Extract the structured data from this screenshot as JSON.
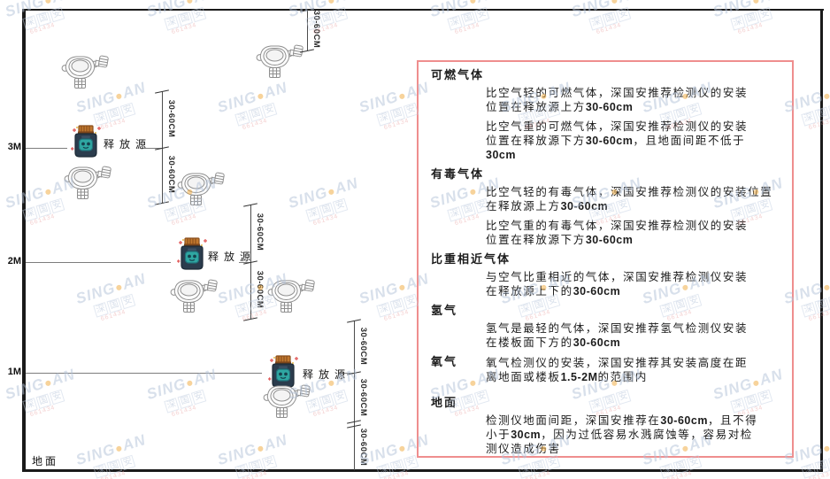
{
  "diagram": {
    "axis_labels": [
      {
        "text": "3M"
      },
      {
        "text": "2M"
      },
      {
        "text": "1M"
      }
    ],
    "ground_label": "地面",
    "source_label": "释放源",
    "dim_label": "30-60CM"
  },
  "panel": {
    "border_color": "#ef8e8e",
    "sections": [
      {
        "heading": "可燃气体",
        "inline": false,
        "gapTop": false,
        "paragraphs": [
          {
            "lines": [
              [
                {
                  "t": "比空气轻的可燃气体，深国安推荐检测仪的安装"
                }
              ],
              [
                {
                  "t": "位置在释放源上方"
                },
                {
                  "t": "30-60cm",
                  "b": true
                }
              ]
            ]
          },
          {
            "lines": [
              [
                {
                  "t": "比空气重的可燃气体，深国安推荐检测仪的安装"
                }
              ],
              [
                {
                  "t": "位置在释放源下方"
                },
                {
                  "t": "30-60cm",
                  "b": true
                },
                {
                  "t": "，且地面间距不低于"
                }
              ],
              [
                {
                  "t": "30cm",
                  "b": true
                }
              ]
            ]
          }
        ]
      },
      {
        "heading": "有毒气体",
        "inline": false,
        "gapTop": false,
        "paragraphs": [
          {
            "lines": [
              [
                {
                  "t": "比空气轻的有毒气体，深国安推荐检测仪的安装位置"
                }
              ],
              [
                {
                  "t": "在释放源上方"
                },
                {
                  "t": "30-60cm",
                  "b": true
                }
              ]
            ]
          },
          {
            "lines": [
              [
                {
                  "t": "比空气重的有毒气体，深国安推荐检测仪的安装"
                }
              ],
              [
                {
                  "t": "位置在释放源下方"
                },
                {
                  "t": "30-60cm",
                  "b": true
                }
              ]
            ]
          }
        ]
      },
      {
        "heading": "比重相近气体",
        "inline": false,
        "gapTop": false,
        "paragraphs": [
          {
            "lines": [
              [
                {
                  "t": "与空气比重相近的气体，深国安推荐检测仪安装"
                }
              ],
              [
                {
                  "t": "在释放源上下的"
                },
                {
                  "t": "30-60cm",
                  "b": true
                }
              ]
            ]
          }
        ]
      },
      {
        "heading": "氢气",
        "inline": false,
        "gapTop": false,
        "paragraphs": [
          {
            "lines": [
              [
                {
                  "t": "氢气是最轻的气体，深国安推荐氢气检测仪安装"
                }
              ],
              [
                {
                  "t": "在楼板面下方的"
                },
                {
                  "t": "30-60cm",
                  "b": true
                }
              ]
            ]
          }
        ]
      },
      {
        "heading": "氧气",
        "inline": true,
        "gapTop": false,
        "paragraphs": [
          {
            "lines": [
              [
                {
                  "t": "氧气检测仪的安装，深国安推荐其安装高度在距"
                }
              ],
              [
                {
                  "t": "离地面或楼板"
                },
                {
                  "t": "1.5-2M",
                  "b": true
                },
                {
                  "t": "的范围内"
                }
              ]
            ]
          }
        ]
      },
      {
        "heading": "地面",
        "inline": false,
        "gapTop": true,
        "paragraphs": [
          {
            "lines": [
              [
                {
                  "t": "检测仪地面间距，深国安推荐在"
                },
                {
                  "t": "30-60cm",
                  "b": true
                },
                {
                  "t": "，且不得"
                }
              ],
              [
                {
                  "t": "小于"
                },
                {
                  "t": "30cm",
                  "b": true
                },
                {
                  "t": "，因为过低容易水溅腐蚀等，容易对检"
                }
              ],
              [
                {
                  "t": "测仪造成伤害"
                }
              ]
            ]
          }
        ]
      }
    ]
  },
  "watermark": {
    "brand_pre": "SING",
    "brand_dot": "●",
    "brand_post": "AN",
    "line2": "深国安",
    "line3": "661434"
  }
}
